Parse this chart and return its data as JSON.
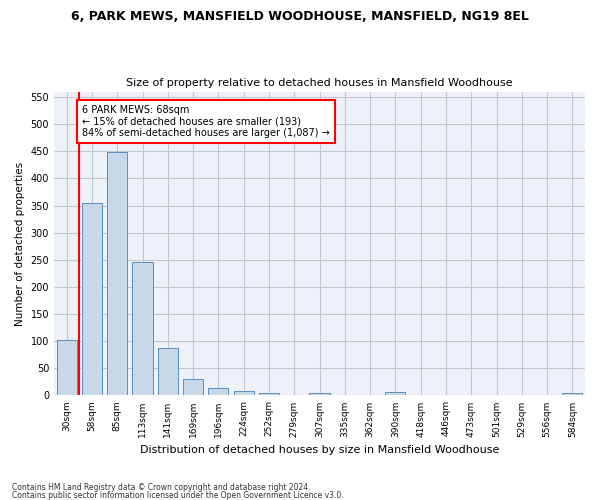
{
  "title": "6, PARK MEWS, MANSFIELD WOODHOUSE, MANSFIELD, NG19 8EL",
  "subtitle": "Size of property relative to detached houses in Mansfield Woodhouse",
  "xlabel": "Distribution of detached houses by size in Mansfield Woodhouse",
  "ylabel": "Number of detached properties",
  "footnote1": "Contains HM Land Registry data © Crown copyright and database right 2024.",
  "footnote2": "Contains public sector information licensed under the Open Government Licence v3.0.",
  "categories": [
    "30sqm",
    "58sqm",
    "85sqm",
    "113sqm",
    "141sqm",
    "169sqm",
    "196sqm",
    "224sqm",
    "252sqm",
    "279sqm",
    "307sqm",
    "335sqm",
    "362sqm",
    "390sqm",
    "418sqm",
    "446sqm",
    "473sqm",
    "501sqm",
    "529sqm",
    "556sqm",
    "584sqm"
  ],
  "values": [
    103,
    354,
    448,
    246,
    88,
    30,
    14,
    9,
    5,
    0,
    5,
    0,
    0,
    6,
    0,
    0,
    0,
    0,
    0,
    0,
    5
  ],
  "bar_color": "#c8d8e8",
  "bar_edge_color": "#5a8fc0",
  "grid_color": "#c0c8d8",
  "background_color": "#eef2f8",
  "annotation_line1": "6 PARK MEWS: 68sqm",
  "annotation_line2": "← 15% of detached houses are smaller (193)",
  "annotation_line3": "84% of semi-detached houses are larger (1,087) →",
  "annotation_box_color": "white",
  "annotation_box_edge": "red",
  "red_line_x": 0.5,
  "ylim": [
    0,
    560
  ],
  "yticks": [
    0,
    50,
    100,
    150,
    200,
    250,
    300,
    350,
    400,
    450,
    500,
    550
  ]
}
